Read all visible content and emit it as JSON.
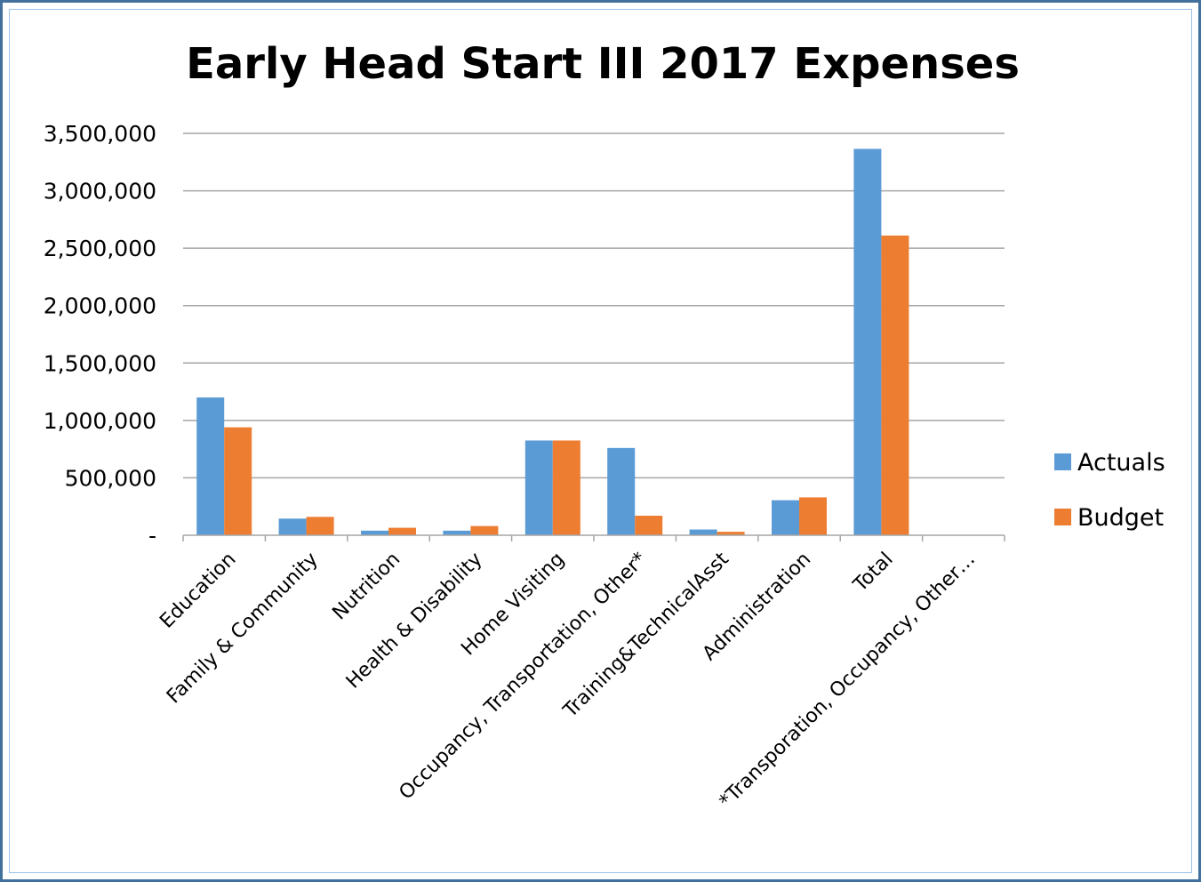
{
  "chart_data": {
    "type": "bar",
    "title": "Early Head Start III 2017 Expenses",
    "categories": [
      "Education",
      "Family & Community",
      "Nutrition",
      "Health & Disability",
      "Home Visiting",
      "Occupancy, Transportation, Other*",
      "Training&TechnicalAsst",
      "Administration",
      "Total",
      "*Transporation, Occupancy, Other…"
    ],
    "series": [
      {
        "name": "Actuals",
        "color": "#5b9bd5",
        "values": [
          1200000,
          145000,
          40000,
          40000,
          825000,
          760000,
          50000,
          305000,
          3365000,
          0
        ]
      },
      {
        "name": "Budget",
        "color": "#ed7d31",
        "values": [
          940000,
          160000,
          65000,
          80000,
          825000,
          170000,
          30000,
          330000,
          2610000,
          0
        ]
      }
    ],
    "ylim": [
      0,
      3500000
    ],
    "yticks": [
      0,
      500000,
      1000000,
      1500000,
      2000000,
      2500000,
      3000000,
      3500000
    ],
    "ytick_labels": [
      "-",
      "500,000",
      "1,000,000",
      "1,500,000",
      "2,000,000",
      "2,500,000",
      "3,000,000",
      "3,500,000"
    ],
    "grid": true,
    "legend": "right",
    "xlabel": "",
    "ylabel": ""
  }
}
